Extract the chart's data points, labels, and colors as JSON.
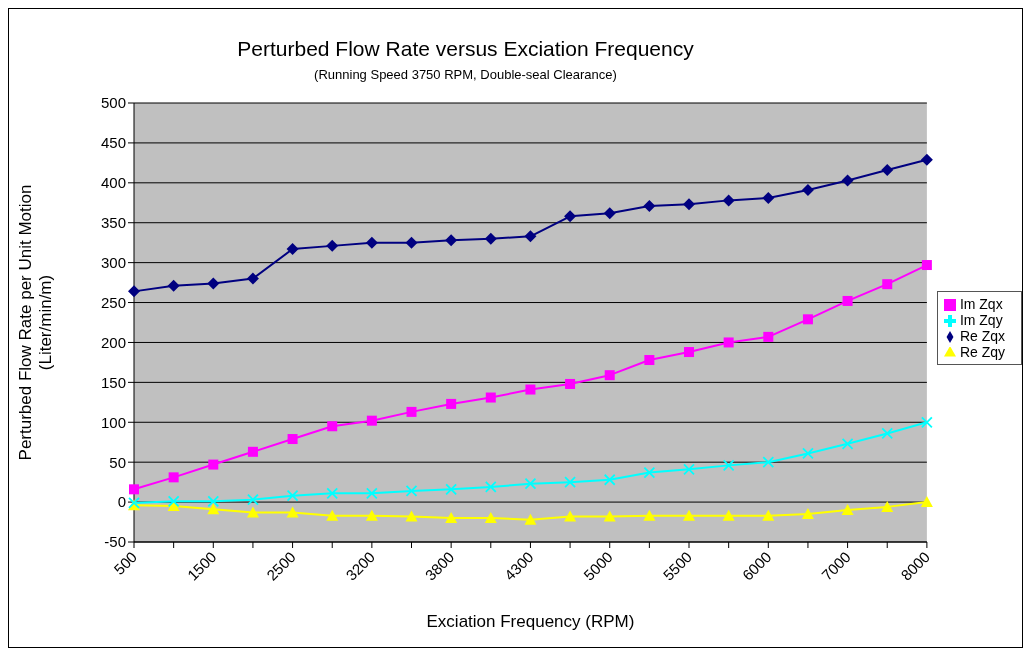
{
  "chart_data": {
    "type": "line",
    "title": "Perturbed Flow Rate versus Exciation Frequency",
    "subtitle": "(Running Speed 3750 RPM, Double-seal Clearance)",
    "xlabel": "Exciation Frequency (RPM)",
    "ylabel": "Perturbed Flow Rate per Unit Motion\n(Liter/min/m)",
    "categories": [
      "500",
      null,
      "1500",
      null,
      "2500",
      null,
      "3200",
      null,
      "3800",
      null,
      "4300",
      null,
      "5000",
      null,
      "5500",
      null,
      "6000",
      null,
      "7000",
      null,
      "8000"
    ],
    "series": [
      {
        "name": "Re Zqx",
        "color": "#000080",
        "marker": "diamond",
        "values": [
          264,
          271,
          274,
          280,
          317,
          321,
          325,
          325,
          328,
          330,
          333,
          358,
          362,
          371,
          373,
          378,
          381,
          391,
          403,
          416,
          429
        ]
      },
      {
        "name": "Im Zqx",
        "color": "#ff00ff",
        "marker": "square",
        "values": [
          16,
          31,
          47,
          63,
          79,
          95,
          102,
          113,
          123,
          131,
          141,
          148,
          159,
          178,
          188,
          200,
          207,
          229,
          252,
          273,
          297
        ]
      },
      {
        "name": "Re Zqy",
        "color": "#ffff00",
        "marker": "triangle",
        "values": [
          -4,
          -5,
          -9,
          -13,
          -13,
          -17,
          -17,
          -18,
          -20,
          -20,
          -22,
          -18,
          -18,
          -17,
          -17,
          -17,
          -17,
          -15,
          -10,
          -6,
          0
        ]
      },
      {
        "name": "Im Zqy",
        "color": "#00ffff",
        "marker": "cross",
        "values": [
          -1,
          1,
          1,
          3,
          8,
          11,
          11,
          14,
          16,
          19,
          23,
          25,
          28,
          37,
          41,
          46,
          50,
          61,
          73,
          86,
          100
        ]
      }
    ],
    "ylim": [
      -50,
      500
    ],
    "yticks": [
      -50,
      0,
      50,
      100,
      150,
      200,
      250,
      300,
      350,
      400,
      450,
      500
    ],
    "grid": "y",
    "legend": "right"
  }
}
